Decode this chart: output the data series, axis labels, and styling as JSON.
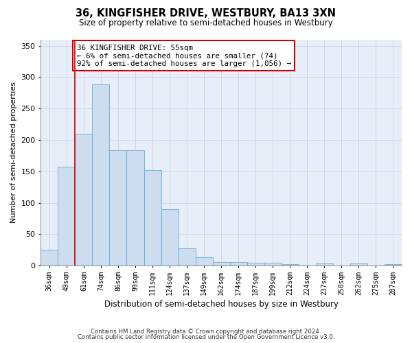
{
  "title1": "36, KINGFISHER DRIVE, WESTBURY, BA13 3XN",
  "title2": "Size of property relative to semi-detached houses in Westbury",
  "xlabel": "Distribution of semi-detached houses by size in Westbury",
  "ylabel": "Number of semi-detached properties",
  "categories": [
    "36sqm",
    "49sqm",
    "61sqm",
    "74sqm",
    "86sqm",
    "99sqm",
    "111sqm",
    "124sqm",
    "137sqm",
    "149sqm",
    "162sqm",
    "174sqm",
    "187sqm",
    "199sqm",
    "212sqm",
    "224sqm",
    "237sqm",
    "250sqm",
    "262sqm",
    "275sqm",
    "287sqm"
  ],
  "values": [
    25,
    157,
    210,
    288,
    184,
    184,
    152,
    90,
    27,
    13,
    6,
    6,
    5,
    5,
    2,
    0,
    3,
    0,
    3,
    0,
    2
  ],
  "bar_color": "#ccddf0",
  "bar_edge_color": "#6aaad4",
  "vline_x": 1.5,
  "vline_color": "#cc0000",
  "annotation_text": "36 KINGFISHER DRIVE: 55sqm\n← 6% of semi-detached houses are smaller (74)\n92% of semi-detached houses are larger (1,056) →",
  "annotation_box_color": "#ffffff",
  "annotation_box_edge_color": "#cc0000",
  "ylim": [
    0,
    360
  ],
  "yticks": [
    0,
    50,
    100,
    150,
    200,
    250,
    300,
    350
  ],
  "footer1": "Contains HM Land Registry data © Crown copyright and database right 2024.",
  "footer2": "Contains public sector information licensed under the Open Government Licence v3.0.",
  "grid_color": "#ccd6e8",
  "background_color": "#e8eef8"
}
